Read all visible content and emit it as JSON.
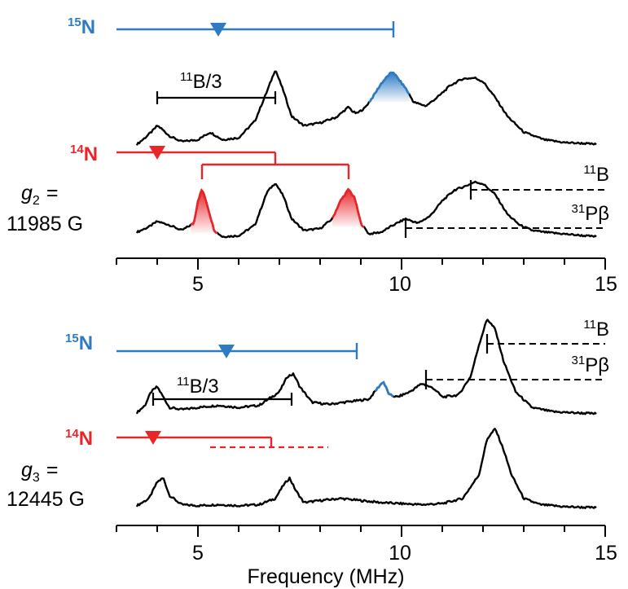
{
  "chart_data": [
    {
      "type": "line",
      "panel": "upper",
      "xlabel": "",
      "xlim": [
        3,
        15
      ],
      "x_ticks": [
        "5",
        "10",
        "15"
      ],
      "field_label": {
        "symbol": "g",
        "subscript": "2",
        "eq": "=",
        "value": "11985 G"
      },
      "colors": {
        "n15": "#2E7BC4",
        "n14": "#E8262A",
        "trace": "#000000"
      },
      "n15_label": {
        "mass": "15",
        "element": "N"
      },
      "n14_label": {
        "mass": "14",
        "element": "N"
      },
      "n15_bar": {
        "start": 3.0,
        "center": 5.5,
        "end": 9.8
      },
      "n14_bar": {
        "start": 3.0,
        "center": 4.0,
        "split_from": 6.9,
        "split": [
          5.1,
          8.7
        ]
      },
      "b11_bracket": {
        "label": "11B/3",
        "label_sup": "11",
        "label_rest": "B/3",
        "range": [
          4.0,
          6.9
        ]
      },
      "markers": [
        {
          "label_sup": "11",
          "label_rest": "B",
          "x": 11.7,
          "trace": "14N"
        },
        {
          "label_sup": "31",
          "label_rest": "Pβ",
          "x": 10.1,
          "trace": "14N"
        }
      ],
      "series": [
        {
          "label_sup": "15",
          "label_rest": "N",
          "x": [
            3.5,
            3.7,
            3.9,
            4.0,
            4.1,
            4.3,
            4.6,
            5.0,
            5.3,
            5.6,
            6.0,
            6.4,
            6.7,
            6.9,
            7.1,
            7.3,
            7.6,
            8.0,
            8.4,
            8.7,
            8.8,
            8.9,
            9.1,
            9.3,
            9.5,
            9.7,
            9.8,
            9.9,
            10.1,
            10.3,
            10.6,
            10.9,
            11.2,
            11.5,
            11.8,
            12.0,
            12.3,
            12.6,
            13.0,
            13.5,
            14.0,
            14.5,
            14.8
          ],
          "y": [
            0.05,
            0.12,
            0.2,
            0.25,
            0.22,
            0.14,
            0.08,
            0.1,
            0.18,
            0.1,
            0.12,
            0.3,
            0.62,
            0.85,
            0.62,
            0.35,
            0.25,
            0.28,
            0.34,
            0.45,
            0.4,
            0.38,
            0.44,
            0.56,
            0.7,
            0.8,
            0.82,
            0.76,
            0.65,
            0.5,
            0.46,
            0.56,
            0.68,
            0.75,
            0.76,
            0.72,
            0.55,
            0.35,
            0.18,
            0.1,
            0.07,
            0.06,
            0.05
          ]
        },
        {
          "label_sup": "14",
          "label_rest": "N",
          "x": [
            3.5,
            3.8,
            4.0,
            4.3,
            4.6,
            4.9,
            5.0,
            5.1,
            5.2,
            5.4,
            5.6,
            6.0,
            6.4,
            6.7,
            6.9,
            7.1,
            7.3,
            7.6,
            8.0,
            8.3,
            8.5,
            8.7,
            8.85,
            9.0,
            9.2,
            9.5,
            9.8,
            10.1,
            10.4,
            10.7,
            11.0,
            11.3,
            11.6,
            11.8,
            12.0,
            12.3,
            12.6,
            12.9,
            13.2,
            13.5,
            14.0,
            14.5,
            14.8
          ],
          "y": [
            0.1,
            0.16,
            0.22,
            0.18,
            0.12,
            0.2,
            0.45,
            0.58,
            0.45,
            0.12,
            0.05,
            0.06,
            0.18,
            0.55,
            0.65,
            0.5,
            0.25,
            0.12,
            0.14,
            0.25,
            0.45,
            0.58,
            0.48,
            0.2,
            0.08,
            0.1,
            0.18,
            0.25,
            0.2,
            0.28,
            0.45,
            0.57,
            0.62,
            0.66,
            0.64,
            0.52,
            0.3,
            0.18,
            0.12,
            0.1,
            0.08,
            0.06,
            0.05
          ]
        }
      ]
    },
    {
      "type": "line",
      "panel": "lower",
      "xlabel": "Frequency (MHz)",
      "xlim": [
        3,
        15
      ],
      "x_ticks": [
        "5",
        "10",
        "15"
      ],
      "field_label": {
        "symbol": "g",
        "subscript": "3",
        "eq": "=",
        "value": "12445 G"
      },
      "colors": {
        "n15": "#2E7BC4",
        "n14": "#E8262A",
        "trace": "#000000"
      },
      "n15_label": {
        "mass": "15",
        "element": "N"
      },
      "n14_label": {
        "mass": "14",
        "element": "N"
      },
      "n15_bar": {
        "start": 3.0,
        "center": 5.7,
        "end": 8.9
      },
      "n14_bar": {
        "start": 3.0,
        "center": 3.9,
        "end": 6.8,
        "dashed": [
          5.3,
          8.2
        ]
      },
      "b11_bracket": {
        "label": "11B/3",
        "label_sup": "11",
        "label_rest": "B/3",
        "range": [
          3.9,
          7.3
        ]
      },
      "markers": [
        {
          "label_sup": "11",
          "label_rest": "B",
          "x": 12.1,
          "trace": "15N"
        },
        {
          "label_sup": "31",
          "label_rest": "Pβ",
          "x": 10.6,
          "trace": "15N"
        }
      ],
      "series": [
        {
          "label_sup": "15",
          "label_rest": "N",
          "x": [
            3.5,
            3.7,
            3.85,
            4.0,
            4.15,
            4.3,
            4.6,
            5.0,
            5.5,
            6.0,
            6.5,
            7.0,
            7.2,
            7.35,
            7.5,
            7.8,
            8.2,
            8.8,
            9.2,
            9.4,
            9.55,
            9.7,
            9.9,
            10.2,
            10.5,
            10.8,
            11.0,
            11.4,
            11.7,
            11.9,
            12.1,
            12.3,
            12.5,
            12.8,
            13.2,
            13.7,
            14.2,
            14.8
          ],
          "y": [
            0.05,
            0.12,
            0.25,
            0.3,
            0.2,
            0.1,
            0.08,
            0.1,
            0.12,
            0.1,
            0.12,
            0.25,
            0.4,
            0.42,
            0.3,
            0.15,
            0.13,
            0.16,
            0.18,
            0.28,
            0.35,
            0.22,
            0.2,
            0.25,
            0.33,
            0.28,
            0.2,
            0.22,
            0.4,
            0.7,
            0.95,
            0.85,
            0.55,
            0.25,
            0.1,
            0.06,
            0.05,
            0.04
          ]
        },
        {
          "label_sup": "14",
          "label_rest": "N",
          "x": [
            3.5,
            3.8,
            4.0,
            4.15,
            4.3,
            4.6,
            5.0,
            5.5,
            6.0,
            6.5,
            6.9,
            7.1,
            7.25,
            7.4,
            7.6,
            8.0,
            8.5,
            9.0,
            9.5,
            10.0,
            10.5,
            11.0,
            11.5,
            11.9,
            12.1,
            12.3,
            12.5,
            12.7,
            13.0,
            13.4,
            14.0,
            14.8
          ],
          "y": [
            0.05,
            0.12,
            0.28,
            0.32,
            0.15,
            0.06,
            0.05,
            0.06,
            0.05,
            0.06,
            0.12,
            0.25,
            0.32,
            0.2,
            0.08,
            0.1,
            0.12,
            0.1,
            0.08,
            0.07,
            0.06,
            0.07,
            0.12,
            0.35,
            0.7,
            0.8,
            0.6,
            0.35,
            0.12,
            0.06,
            0.04,
            0.03
          ]
        }
      ]
    }
  ]
}
